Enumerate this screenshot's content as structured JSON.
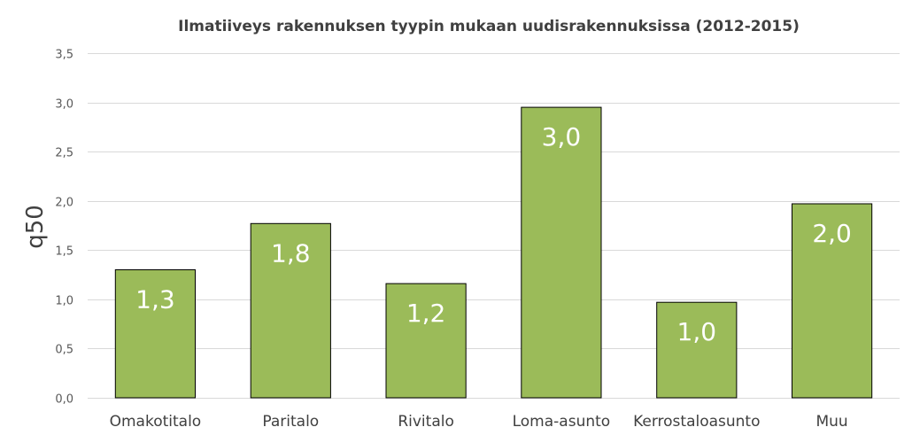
{
  "chart_data": {
    "type": "bar",
    "title": "Ilmatiiveys rakennuksen tyypin mukaan uudisrakennuksissa (2012-2015)",
    "xlabel": "",
    "ylabel": "q50",
    "categories": [
      "Omakotitalo",
      "Paritalo",
      "Rivitalo",
      "Loma-asunto",
      "Kerrostaloasunto",
      "Muu"
    ],
    "values": [
      1.3,
      1.77,
      1.16,
      2.95,
      0.97,
      1.97
    ],
    "data_labels": [
      "1,3",
      "1,8",
      "1,2",
      "3,0",
      "1,0",
      "2,0"
    ],
    "ylim": [
      0,
      3.5
    ],
    "yticks": [
      0,
      0.5,
      1.0,
      1.5,
      2.0,
      2.5,
      3.0,
      3.5
    ],
    "ytick_labels": [
      "0,0",
      "0,5",
      "1,0",
      "1,5",
      "2,0",
      "2,5",
      "3,0",
      "3,5"
    ],
    "grid": true,
    "bar_color": "#9bbb59",
    "bar_edge_color": "#000000",
    "data_label_color": "#ffffff"
  }
}
